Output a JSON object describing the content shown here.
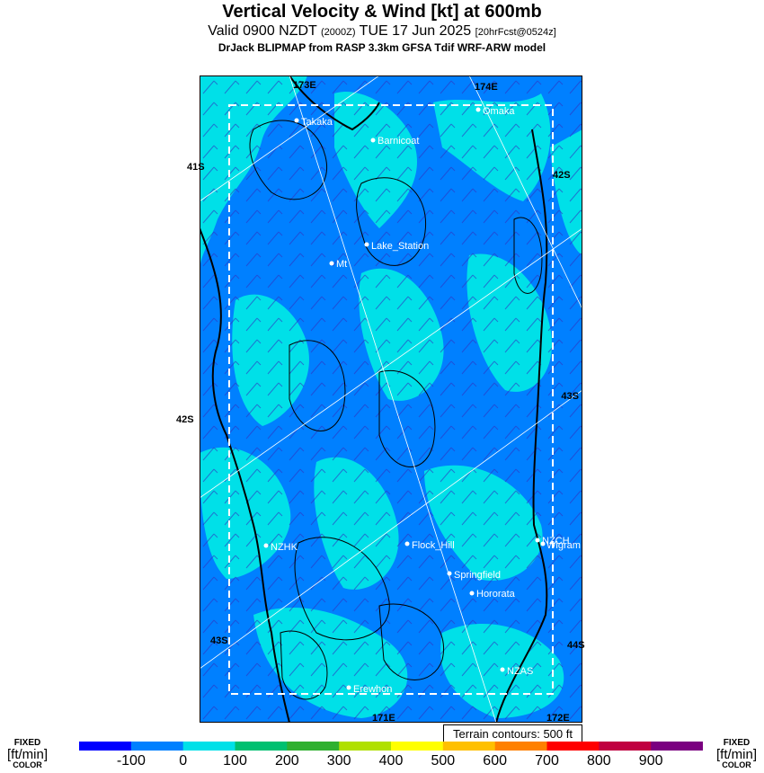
{
  "header": {
    "title": "Vertical Velocity & Wind [kt] at 600mb",
    "valid_main": "Valid 0900 NZDT",
    "valid_z": "(2000Z)",
    "valid_date": "TUE 17 Jun 2025",
    "valid_fcst": "[20hrFcst@0524z]",
    "model": "DrJack BLIPMAP from RASP 3.3km GFSA Tdif WRF-ARW model"
  },
  "map": {
    "grid_labels": [
      {
        "text": "173E",
        "pos": "top-left"
      },
      {
        "text": "174E",
        "pos": "top-right"
      },
      {
        "text": "41S",
        "pos": "left-upper"
      },
      {
        "text": "42S",
        "pos": "right-upper"
      },
      {
        "text": "42S",
        "pos": "left-middle"
      },
      {
        "text": "43S",
        "pos": "right-middle"
      },
      {
        "text": "43S",
        "pos": "left-lower"
      },
      {
        "text": "44S",
        "pos": "right-lower"
      },
      {
        "text": "171E",
        "pos": "bottom-left"
      },
      {
        "text": "172E",
        "pos": "bottom-right"
      }
    ],
    "places": [
      "Takaka",
      "Omaka",
      "Barnicoat",
      "Lake_Station",
      "Mt",
      "NZHK",
      "Flock_Hill",
      "NZCH",
      "Wigram",
      "Springfield",
      "Hororata",
      "NZAS",
      "Erewhon"
    ],
    "colors": {
      "weak_down": "#0080ff",
      "weak_up": "#00e0e8",
      "coast": "#000000",
      "wind_barb": "#3030c0"
    }
  },
  "terrain_note": "Terrain contours: 500 ft",
  "colorbar": {
    "left_label": [
      "FIXED",
      "[ft/min]",
      "COLOR"
    ],
    "right_label": [
      "FIXED",
      "[ft/min]",
      "COLOR"
    ],
    "ticks": [
      "-100",
      "0",
      "100",
      "200",
      "300",
      "400",
      "500",
      "600",
      "700",
      "800",
      "900"
    ],
    "colors": [
      "#0000ff",
      "#0080ff",
      "#00e0e8",
      "#00c070",
      "#30b030",
      "#b0e000",
      "#ffff00",
      "#ffc000",
      "#ff8000",
      "#ff0000",
      "#c00040",
      "#7a0080"
    ]
  }
}
